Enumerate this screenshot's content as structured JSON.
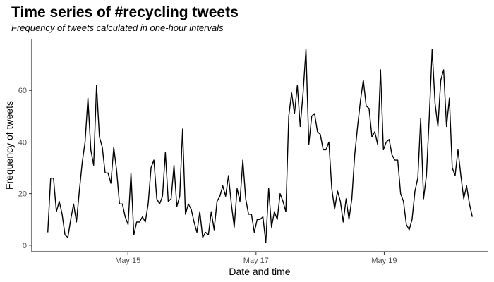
{
  "chart_data": {
    "type": "line",
    "title": "Time series of #recycling tweets",
    "subtitle": "Frequency of tweets calculated in one-hour intervals",
    "xlabel": "Date and time",
    "ylabel": "Frequency of tweets",
    "x_unit": "hour",
    "x_start": "May 13 18:00",
    "x_end": "May 20 09:00",
    "xlim": [
      "May 13 12:00",
      "May 20 15:00"
    ],
    "ylim": [
      -2.5,
      80
    ],
    "x_ticks": [
      "May 15",
      "May 17",
      "May 19"
    ],
    "y_ticks": [
      0,
      20,
      40,
      60
    ],
    "grid": false,
    "legend": "none",
    "line_color": "#000000",
    "series": [
      {
        "values": [
          5,
          26,
          26,
          13,
          17,
          12,
          4,
          3,
          10,
          16,
          9,
          21,
          32,
          40,
          57,
          37,
          31,
          62,
          42,
          38,
          28,
          28,
          24,
          38,
          29,
          16,
          16,
          11,
          8,
          28,
          4,
          9,
          9,
          11,
          9,
          16,
          30,
          33,
          18,
          16,
          19,
          36,
          17,
          18,
          31,
          15,
          19,
          45,
          12,
          16,
          14,
          9,
          5,
          13,
          3,
          5,
          4,
          13,
          6,
          17,
          19,
          23,
          19,
          27,
          16,
          7,
          22,
          17,
          33,
          18,
          12,
          12,
          5,
          10,
          10,
          11,
          1,
          22,
          7,
          13,
          10,
          20,
          17,
          13,
          50,
          59,
          51,
          62,
          46,
          59,
          76,
          39,
          50,
          51,
          44,
          43,
          37,
          37,
          40,
          22,
          14,
          21,
          17,
          9,
          18,
          10,
          18,
          35,
          46,
          56,
          64,
          54,
          53,
          42,
          44,
          39,
          68,
          37,
          40,
          41,
          35,
          33,
          33,
          20,
          17,
          8,
          6,
          10,
          21,
          26,
          49,
          18,
          27,
          50,
          76,
          55,
          46,
          64,
          68,
          46,
          57,
          30,
          27,
          37,
          27,
          18,
          23,
          16,
          11
        ]
      }
    ]
  }
}
